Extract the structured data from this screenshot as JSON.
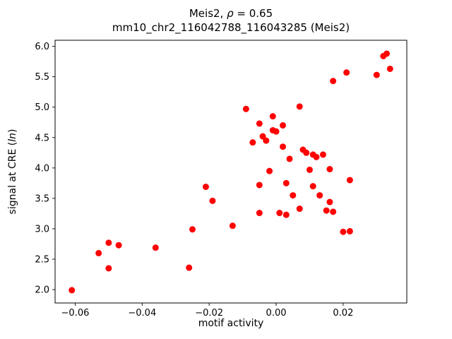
{
  "chart_data": {
    "type": "scatter",
    "title_parts": [
      "Meis2, ",
      "ρ",
      " = 0.65"
    ],
    "subtitle": "mm10_chr2_116042788_116043285 (Meis2)",
    "xlabel": "motif activity",
    "ylabel_parts": [
      "signal at CRE (",
      "ln",
      ")"
    ],
    "marker_color": "#ff0000",
    "marker_radius": 4.5,
    "xlim": [
      -0.066,
      0.039
    ],
    "ylim": [
      1.78,
      6.1
    ],
    "grid": false,
    "legend": "none",
    "xticks": {
      "values": [
        -0.06,
        -0.04,
        -0.02,
        0.0,
        0.02
      ],
      "labels": [
        "−0.06",
        "−0.04",
        "−0.02",
        "0.00",
        "0.02"
      ]
    },
    "yticks": {
      "values": [
        2.0,
        2.5,
        3.0,
        3.5,
        4.0,
        4.5,
        5.0,
        5.5,
        6.0
      ],
      "labels": [
        "2.0",
        "2.5",
        "3.0",
        "3.5",
        "4.0",
        "4.5",
        "5.0",
        "5.5",
        "6.0"
      ]
    },
    "points": [
      [
        -0.061,
        1.99
      ],
      [
        -0.053,
        2.6
      ],
      [
        -0.05,
        2.77
      ],
      [
        -0.05,
        2.35
      ],
      [
        -0.047,
        2.73
      ],
      [
        -0.036,
        2.69
      ],
      [
        -0.026,
        2.36
      ],
      [
        -0.025,
        2.99
      ],
      [
        -0.021,
        3.69
      ],
      [
        -0.019,
        3.46
      ],
      [
        -0.013,
        3.05
      ],
      [
        -0.009,
        4.97
      ],
      [
        -0.007,
        4.42
      ],
      [
        -0.005,
        4.73
      ],
      [
        -0.005,
        3.72
      ],
      [
        -0.005,
        3.26
      ],
      [
        -0.004,
        4.52
      ],
      [
        -0.003,
        4.45
      ],
      [
        -0.002,
        3.95
      ],
      [
        -0.001,
        4.85
      ],
      [
        -0.001,
        4.62
      ],
      [
        0.0,
        4.6
      ],
      [
        0.001,
        3.26
      ],
      [
        0.002,
        4.7
      ],
      [
        0.002,
        4.35
      ],
      [
        0.003,
        3.75
      ],
      [
        0.003,
        3.23
      ],
      [
        0.004,
        4.15
      ],
      [
        0.005,
        3.55
      ],
      [
        0.007,
        5.01
      ],
      [
        0.007,
        3.33
      ],
      [
        0.008,
        4.3
      ],
      [
        0.009,
        4.25
      ],
      [
        0.01,
        3.97
      ],
      [
        0.011,
        4.22
      ],
      [
        0.011,
        3.7
      ],
      [
        0.012,
        4.18
      ],
      [
        0.013,
        3.55
      ],
      [
        0.014,
        4.22
      ],
      [
        0.015,
        3.3
      ],
      [
        0.016,
        3.98
      ],
      [
        0.016,
        3.44
      ],
      [
        0.017,
        5.43
      ],
      [
        0.017,
        3.28
      ],
      [
        0.02,
        2.95
      ],
      [
        0.021,
        5.57
      ],
      [
        0.022,
        3.8
      ],
      [
        0.022,
        2.96
      ],
      [
        0.03,
        5.53
      ],
      [
        0.032,
        5.84
      ],
      [
        0.033,
        5.88
      ],
      [
        0.034,
        5.63
      ]
    ]
  }
}
